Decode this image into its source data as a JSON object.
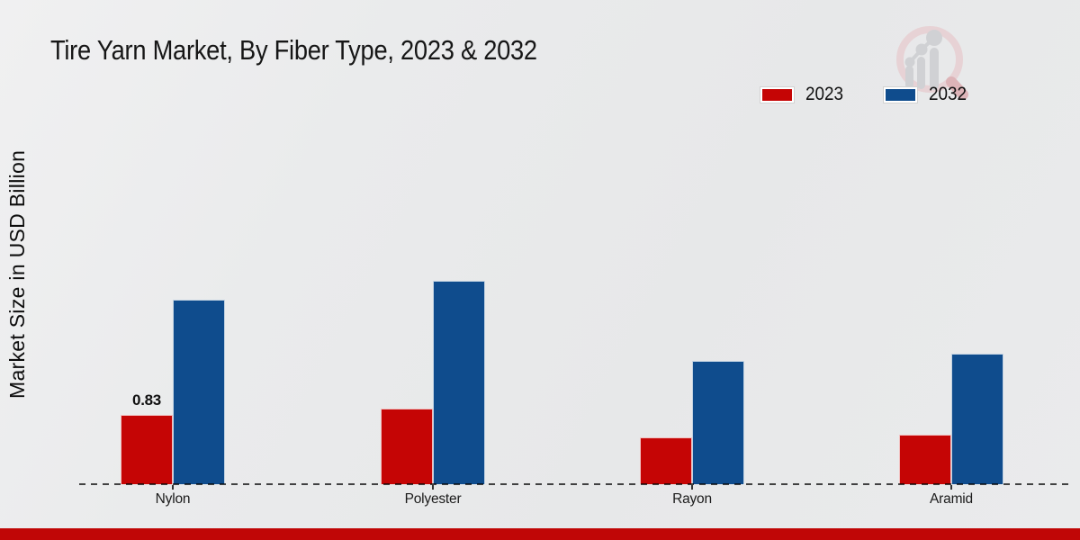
{
  "title": "Tire Yarn Market, By Fiber Type, 2023 & 2032",
  "y_axis_label": "Market Size in USD Billion",
  "legend": {
    "items": [
      {
        "label": "2023",
        "color": "#c50505"
      },
      {
        "label": "2032",
        "color": "#0f4c8d"
      }
    ]
  },
  "footer": {
    "accent_color": "#c00606"
  },
  "logo": {
    "name": "magnifier-bar-chart-watermark"
  },
  "chart_data": {
    "type": "bar",
    "title": "Tire Yarn Market, By Fiber Type, 2023 & 2032",
    "xlabel": "",
    "ylabel": "Market Size in USD Billion",
    "categories": [
      "Nylon",
      "Polyester",
      "Rayon",
      "Aramid"
    ],
    "series": [
      {
        "name": "2023",
        "color": "#c50505",
        "values": [
          0.83,
          0.91,
          0.56,
          0.59
        ]
      },
      {
        "name": "2032",
        "color": "#0f4c8d",
        "values": [
          2.21,
          2.44,
          1.48,
          1.56
        ]
      }
    ],
    "annotations": [
      {
        "category": "Nylon",
        "series": "2023",
        "text": "0.83"
      }
    ],
    "ylim": [
      0,
      2.6
    ],
    "grid": false,
    "legend_position": "top-right",
    "baseline_style": "dashed"
  }
}
